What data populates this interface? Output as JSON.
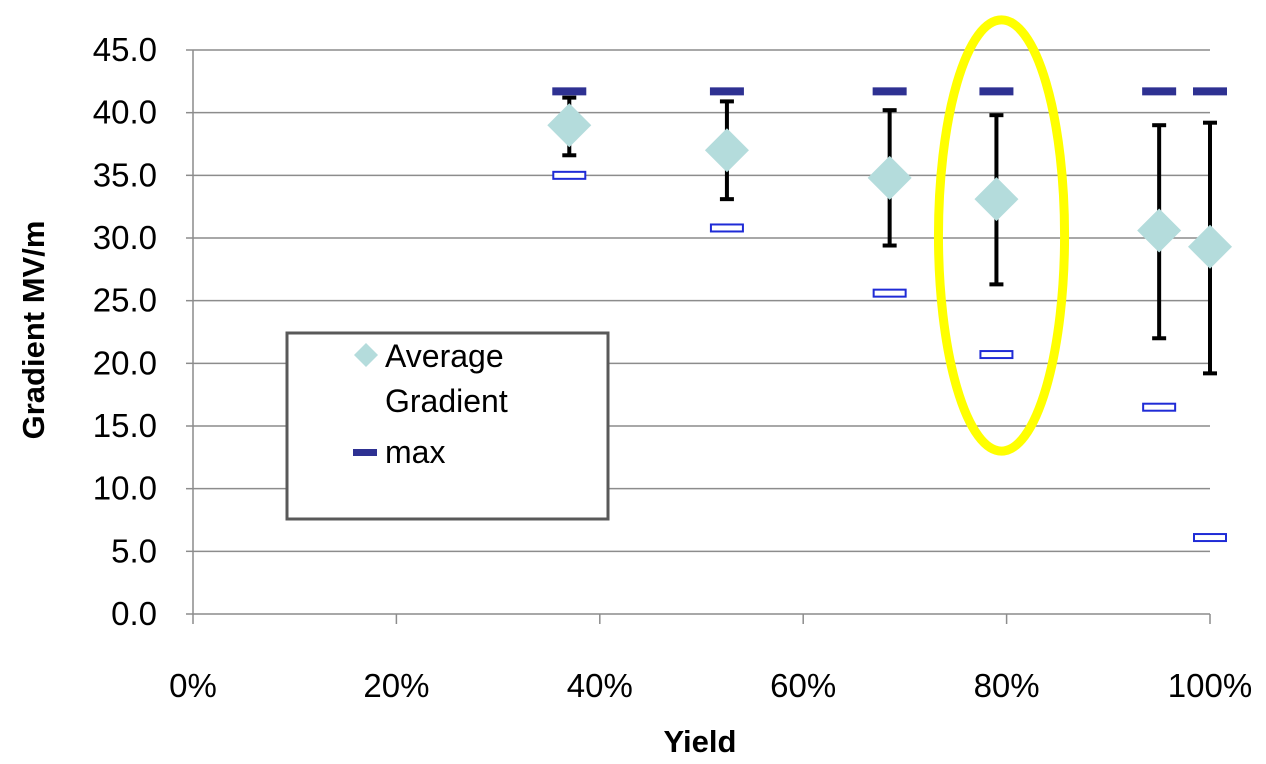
{
  "chart_data": {
    "type": "scatter",
    "title": "",
    "xlabel": "Yield",
    "ylabel": "Gradient MV/m",
    "xlim": [
      0,
      100
    ],
    "ylim": [
      0,
      45
    ],
    "x_ticks": [
      "0%",
      "20%",
      "40%",
      "60%",
      "80%",
      "100%"
    ],
    "x_tick_values": [
      0,
      20,
      40,
      60,
      80,
      100
    ],
    "y_ticks": [
      "0.0",
      "5.0",
      "10.0",
      "15.0",
      "20.0",
      "25.0",
      "30.0",
      "35.0",
      "40.0",
      "45.0"
    ],
    "y_tick_values": [
      0,
      5,
      10,
      15,
      20,
      25,
      30,
      35,
      40,
      45
    ],
    "grid": "horizontal",
    "legend_position": "left-middle",
    "series": [
      {
        "name": "Average Gradient",
        "marker": "diamond",
        "color": "#b4dcdc",
        "points": [
          {
            "x": 37,
            "y": 39.0
          },
          {
            "x": 52.5,
            "y": 37.0
          },
          {
            "x": 68.5,
            "y": 34.8
          },
          {
            "x": 79,
            "y": 33.1
          },
          {
            "x": 95,
            "y": 30.6
          },
          {
            "x": 100,
            "y": 29.3
          }
        ],
        "error_bars": [
          {
            "low": 36.6,
            "high": 41.2
          },
          {
            "low": 33.1,
            "high": 40.9
          },
          {
            "low": 29.4,
            "high": 40.2
          },
          {
            "low": 26.3,
            "high": 39.8
          },
          {
            "low": 22.0,
            "high": 39.0
          },
          {
            "low": 19.2,
            "high": 39.2
          }
        ]
      },
      {
        "name": "max",
        "marker": "dash",
        "color": "#2e3192",
        "points": [
          {
            "x": 37,
            "y": 41.7
          },
          {
            "x": 52.5,
            "y": 41.7
          },
          {
            "x": 68.5,
            "y": 41.7
          },
          {
            "x": 79,
            "y": 41.7
          },
          {
            "x": 95,
            "y": 41.7
          },
          {
            "x": 100,
            "y": 41.7
          }
        ]
      },
      {
        "name": "",
        "marker": "hollow-dash",
        "color": "#1f2bd6",
        "points": [
          {
            "x": 37,
            "y": 35.0
          },
          {
            "x": 52.5,
            "y": 30.8
          },
          {
            "x": 68.5,
            "y": 25.6
          },
          {
            "x": 79,
            "y": 20.7
          },
          {
            "x": 95,
            "y": 16.5
          },
          {
            "x": 100,
            "y": 6.1
          }
        ]
      }
    ],
    "annotations": [
      {
        "type": "ellipse",
        "color": "#ffff00",
        "cx": 79.5,
        "cy": 30.2,
        "rx_data": 6.2,
        "ry_data": 17.2
      }
    ],
    "legend": {
      "entries": [
        {
          "label_lines": [
            "Average",
            "Gradient"
          ],
          "marker": "diamond"
        },
        {
          "label_lines": [
            "max"
          ],
          "marker": "dash"
        }
      ]
    }
  },
  "colors": {
    "avg_marker": "#b4dcdc",
    "max_marker": "#2e3192",
    "min_marker": "#1f2bd6",
    "error_bar": "#000000",
    "grid": "#8c8c8c",
    "axis": "#8c8c8c",
    "highlight": "#ffff00",
    "legend_border": "#595959"
  }
}
